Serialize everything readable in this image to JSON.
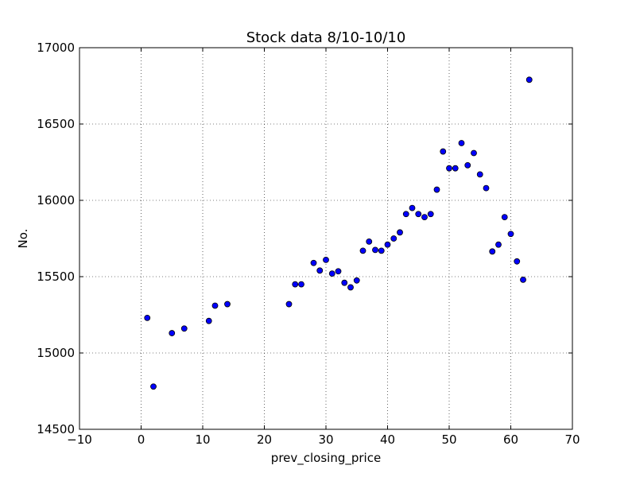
{
  "chart_data": {
    "type": "scatter",
    "title": "Stock data 8/10-10/10",
    "xlabel": "prev_closing_price",
    "ylabel": "No.",
    "xlim": [
      -10,
      70
    ],
    "ylim": [
      14500,
      17000
    ],
    "x_ticks": [
      -10,
      0,
      10,
      20,
      30,
      40,
      50,
      60,
      70
    ],
    "y_ticks": [
      14500,
      15000,
      15500,
      16000,
      16500,
      17000
    ],
    "grid": true,
    "marker_color": "#0000ff",
    "x": [
      1,
      2,
      5,
      7,
      11,
      12,
      14,
      24,
      25,
      26,
      28,
      29,
      30,
      31,
      32,
      33,
      34,
      35,
      36,
      37,
      38,
      39,
      40,
      41,
      42,
      43,
      44,
      45,
      46,
      47,
      48,
      49,
      50,
      51,
      52,
      53,
      54,
      55,
      56,
      57,
      58,
      59,
      60,
      61,
      62,
      63
    ],
    "y": [
      15230,
      14780,
      15130,
      15160,
      15210,
      15310,
      15320,
      15320,
      15450,
      15450,
      15590,
      15540,
      15610,
      15520,
      15535,
      15460,
      15430,
      15475,
      15670,
      15730,
      15675,
      15670,
      15710,
      15750,
      15790,
      15910,
      15950,
      15910,
      15890,
      15910,
      16070,
      16320,
      16210,
      16210,
      16375,
      16230,
      16310,
      16170,
      16080,
      15665,
      15710,
      15890,
      15780,
      15600,
      15480,
      16790
    ]
  }
}
